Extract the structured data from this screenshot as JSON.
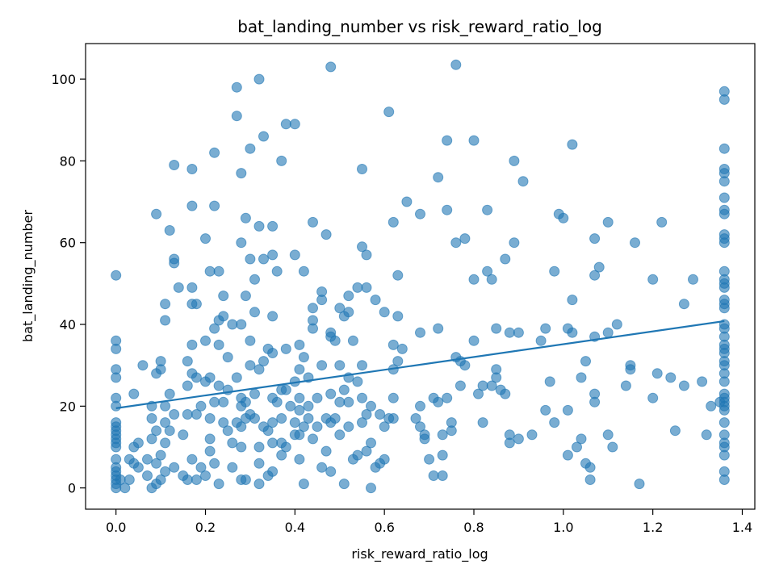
{
  "chart_data": {
    "type": "scatter",
    "title": "bat_landing_number vs risk_reward_ratio_log",
    "xlabel": "risk_reward_ratio_log",
    "ylabel": "bat_landing_number",
    "xlim": [
      -0.068,
      1.428
    ],
    "ylim": [
      -5.2,
      108.7
    ],
    "xticks": [
      0.0,
      0.2,
      0.4,
      0.6,
      0.8,
      1.0,
      1.2,
      1.4
    ],
    "xtick_labels": [
      "0.0",
      "0.2",
      "0.4",
      "0.6",
      "0.8",
      "1.0",
      "1.2",
      "1.4"
    ],
    "yticks": [
      0,
      20,
      40,
      60,
      80,
      100
    ],
    "ytick_labels": [
      "0",
      "20",
      "40",
      "60",
      "80",
      "100"
    ],
    "grid": false,
    "colors": {
      "points": "#1f77b4",
      "trend": "#1f77b4"
    },
    "trendline": {
      "x": [
        0.0,
        1.36
      ],
      "y": [
        19.5,
        40.8
      ]
    },
    "points": [
      [
        0.0,
        52
      ],
      [
        0.0,
        36
      ],
      [
        0.0,
        34
      ],
      [
        0.0,
        29
      ],
      [
        0.0,
        27
      ],
      [
        0.0,
        22
      ],
      [
        0.0,
        20
      ],
      [
        0.0,
        16
      ],
      [
        0.0,
        15
      ],
      [
        0.0,
        14
      ],
      [
        0.0,
        13
      ],
      [
        0.0,
        12
      ],
      [
        0.0,
        11
      ],
      [
        0.0,
        10
      ],
      [
        0.0,
        7
      ],
      [
        0.0,
        5
      ],
      [
        0.0,
        4
      ],
      [
        0.0,
        3
      ],
      [
        0.0,
        2
      ],
      [
        0.0,
        1
      ],
      [
        0.0,
        0
      ],
      [
        0.01,
        2
      ],
      [
        0.02,
        0
      ],
      [
        0.03,
        2
      ],
      [
        0.03,
        7
      ],
      [
        0.04,
        10
      ],
      [
        0.04,
        6
      ],
      [
        0.04,
        23
      ],
      [
        0.05,
        11
      ],
      [
        0.05,
        5
      ],
      [
        0.06,
        30
      ],
      [
        0.07,
        7
      ],
      [
        0.07,
        3
      ],
      [
        0.08,
        0
      ],
      [
        0.08,
        20
      ],
      [
        0.08,
        17
      ],
      [
        0.08,
        12
      ],
      [
        0.09,
        67
      ],
      [
        0.09,
        28
      ],
      [
        0.09,
        14
      ],
      [
        0.09,
        1
      ],
      [
        0.09,
        6
      ],
      [
        0.1,
        31
      ],
      [
        0.1,
        29
      ],
      [
        0.1,
        8
      ],
      [
        0.1,
        2
      ],
      [
        0.11,
        45
      ],
      [
        0.11,
        41
      ],
      [
        0.11,
        20
      ],
      [
        0.11,
        16
      ],
      [
        0.11,
        11
      ],
      [
        0.11,
        4
      ],
      [
        0.12,
        23
      ],
      [
        0.12,
        63
      ],
      [
        0.12,
        14
      ],
      [
        0.13,
        79
      ],
      [
        0.13,
        56
      ],
      [
        0.13,
        55
      ],
      [
        0.13,
        18
      ],
      [
        0.13,
        5
      ],
      [
        0.14,
        49
      ],
      [
        0.15,
        13
      ],
      [
        0.15,
        3
      ],
      [
        0.16,
        31
      ],
      [
        0.16,
        25
      ],
      [
        0.16,
        18
      ],
      [
        0.16,
        2
      ],
      [
        0.17,
        69
      ],
      [
        0.17,
        78
      ],
      [
        0.17,
        45
      ],
      [
        0.17,
        49
      ],
      [
        0.17,
        35
      ],
      [
        0.17,
        28
      ],
      [
        0.17,
        7
      ],
      [
        0.18,
        45
      ],
      [
        0.18,
        27
      ],
      [
        0.18,
        18
      ],
      [
        0.18,
        2
      ],
      [
        0.19,
        20
      ],
      [
        0.19,
        5
      ],
      [
        0.2,
        61
      ],
      [
        0.2,
        36
      ],
      [
        0.2,
        26
      ],
      [
        0.2,
        3
      ],
      [
        0.21,
        53
      ],
      [
        0.21,
        27
      ],
      [
        0.21,
        17
      ],
      [
        0.21,
        12
      ],
      [
        0.21,
        9
      ],
      [
        0.22,
        82
      ],
      [
        0.22,
        69
      ],
      [
        0.22,
        39
      ],
      [
        0.22,
        21
      ],
      [
        0.22,
        6
      ],
      [
        0.23,
        53
      ],
      [
        0.23,
        41
      ],
      [
        0.23,
        35
      ],
      [
        0.23,
        25
      ],
      [
        0.23,
        1
      ],
      [
        0.24,
        21
      ],
      [
        0.24,
        42
      ],
      [
        0.24,
        47
      ],
      [
        0.24,
        16
      ],
      [
        0.25,
        24
      ],
      [
        0.25,
        32
      ],
      [
        0.25,
        14
      ],
      [
        0.26,
        40
      ],
      [
        0.26,
        5
      ],
      [
        0.26,
        11
      ],
      [
        0.27,
        16
      ],
      [
        0.27,
        27
      ],
      [
        0.27,
        91
      ],
      [
        0.27,
        98
      ],
      [
        0.28,
        77
      ],
      [
        0.28,
        60
      ],
      [
        0.28,
        40
      ],
      [
        0.28,
        22
      ],
      [
        0.28,
        20
      ],
      [
        0.28,
        15
      ],
      [
        0.28,
        10
      ],
      [
        0.28,
        2
      ],
      [
        0.29,
        66
      ],
      [
        0.29,
        47
      ],
      [
        0.29,
        21
      ],
      [
        0.29,
        17
      ],
      [
        0.29,
        2
      ],
      [
        0.3,
        56
      ],
      [
        0.3,
        83
      ],
      [
        0.3,
        36
      ],
      [
        0.3,
        30
      ],
      [
        0.3,
        18
      ],
      [
        0.31,
        51
      ],
      [
        0.31,
        43
      ],
      [
        0.31,
        23
      ],
      [
        0.31,
        17
      ],
      [
        0.32,
        100
      ],
      [
        0.32,
        64
      ],
      [
        0.32,
        29
      ],
      [
        0.32,
        10
      ],
      [
        0.32,
        6
      ],
      [
        0.32,
        1
      ],
      [
        0.33,
        86
      ],
      [
        0.33,
        56
      ],
      [
        0.33,
        31
      ],
      [
        0.33,
        15
      ],
      [
        0.34,
        34
      ],
      [
        0.34,
        14
      ],
      [
        0.34,
        3
      ],
      [
        0.35,
        64
      ],
      [
        0.35,
        57
      ],
      [
        0.35,
        42
      ],
      [
        0.35,
        33
      ],
      [
        0.35,
        22
      ],
      [
        0.35,
        16
      ],
      [
        0.35,
        11
      ],
      [
        0.35,
        4
      ],
      [
        0.36,
        53
      ],
      [
        0.36,
        21
      ],
      [
        0.37,
        80
      ],
      [
        0.37,
        24
      ],
      [
        0.37,
        17
      ],
      [
        0.37,
        11
      ],
      [
        0.37,
        8
      ],
      [
        0.38,
        89
      ],
      [
        0.38,
        34
      ],
      [
        0.38,
        24
      ],
      [
        0.38,
        10
      ],
      [
        0.39,
        20
      ],
      [
        0.4,
        89
      ],
      [
        0.4,
        57
      ],
      [
        0.4,
        26
      ],
      [
        0.4,
        16
      ],
      [
        0.4,
        13
      ],
      [
        0.41,
        35
      ],
      [
        0.41,
        29
      ],
      [
        0.41,
        22
      ],
      [
        0.41,
        19
      ],
      [
        0.41,
        13
      ],
      [
        0.41,
        7
      ],
      [
        0.42,
        32
      ],
      [
        0.42,
        53
      ],
      [
        0.42,
        15
      ],
      [
        0.42,
        1
      ],
      [
        0.43,
        27
      ],
      [
        0.43,
        20
      ],
      [
        0.43,
        17
      ],
      [
        0.44,
        65
      ],
      [
        0.44,
        44
      ],
      [
        0.44,
        41
      ],
      [
        0.44,
        39
      ],
      [
        0.44,
        12
      ],
      [
        0.45,
        22
      ],
      [
        0.45,
        15
      ],
      [
        0.46,
        48
      ],
      [
        0.46,
        46
      ],
      [
        0.46,
        30
      ],
      [
        0.46,
        5
      ],
      [
        0.47,
        62
      ],
      [
        0.47,
        17
      ],
      [
        0.47,
        9
      ],
      [
        0.48,
        103
      ],
      [
        0.48,
        4
      ],
      [
        0.48,
        38
      ],
      [
        0.48,
        37
      ],
      [
        0.48,
        23
      ],
      [
        0.48,
        16
      ],
      [
        0.49,
        36
      ],
      [
        0.49,
        17
      ],
      [
        0.5,
        44
      ],
      [
        0.5,
        30
      ],
      [
        0.5,
        21
      ],
      [
        0.5,
        13
      ],
      [
        0.51,
        42
      ],
      [
        0.51,
        24
      ],
      [
        0.51,
        1
      ],
      [
        0.52,
        47
      ],
      [
        0.52,
        43
      ],
      [
        0.52,
        27
      ],
      [
        0.52,
        21
      ],
      [
        0.52,
        15
      ],
      [
        0.53,
        36
      ],
      [
        0.53,
        7
      ],
      [
        0.54,
        49
      ],
      [
        0.54,
        26
      ],
      [
        0.54,
        8
      ],
      [
        0.55,
        78
      ],
      [
        0.55,
        59
      ],
      [
        0.55,
        30
      ],
      [
        0.55,
        22
      ],
      [
        0.55,
        16
      ],
      [
        0.56,
        57
      ],
      [
        0.56,
        49
      ],
      [
        0.56,
        18
      ],
      [
        0.56,
        9
      ],
      [
        0.57,
        20
      ],
      [
        0.57,
        11
      ],
      [
        0.57,
        0
      ],
      [
        0.58,
        46
      ],
      [
        0.58,
        5
      ],
      [
        0.59,
        18
      ],
      [
        0.59,
        6
      ],
      [
        0.6,
        43
      ],
      [
        0.6,
        15
      ],
      [
        0.6,
        7
      ],
      [
        0.61,
        92
      ],
      [
        0.61,
        17
      ],
      [
        0.62,
        65
      ],
      [
        0.62,
        35
      ],
      [
        0.62,
        22
      ],
      [
        0.62,
        17
      ],
      [
        0.62,
        29
      ],
      [
        0.63,
        52
      ],
      [
        0.63,
        42
      ],
      [
        0.63,
        31
      ],
      [
        0.64,
        34
      ],
      [
        0.65,
        70
      ],
      [
        0.67,
        17
      ],
      [
        0.68,
        38
      ],
      [
        0.68,
        67
      ],
      [
        0.68,
        20
      ],
      [
        0.68,
        15
      ],
      [
        0.69,
        13
      ],
      [
        0.69,
        12
      ],
      [
        0.7,
        7
      ],
      [
        0.71,
        22
      ],
      [
        0.71,
        3
      ],
      [
        0.72,
        76
      ],
      [
        0.72,
        39
      ],
      [
        0.72,
        21
      ],
      [
        0.73,
        13
      ],
      [
        0.73,
        8
      ],
      [
        0.73,
        3
      ],
      [
        0.74,
        85
      ],
      [
        0.74,
        68
      ],
      [
        0.74,
        22
      ],
      [
        0.75,
        16
      ],
      [
        0.75,
        14
      ],
      [
        0.76,
        103.5
      ],
      [
        0.76,
        32
      ],
      [
        0.76,
        60
      ],
      [
        0.77,
        31
      ],
      [
        0.77,
        25
      ],
      [
        0.78,
        61
      ],
      [
        0.78,
        30
      ],
      [
        0.8,
        85
      ],
      [
        0.8,
        51
      ],
      [
        0.8,
        36
      ],
      [
        0.81,
        23
      ],
      [
        0.82,
        25
      ],
      [
        0.82,
        16
      ],
      [
        0.83,
        68
      ],
      [
        0.83,
        53
      ],
      [
        0.84,
        25
      ],
      [
        0.84,
        51
      ],
      [
        0.85,
        39
      ],
      [
        0.85,
        29
      ],
      [
        0.85,
        27
      ],
      [
        0.86,
        24
      ],
      [
        0.87,
        23
      ],
      [
        0.87,
        56
      ],
      [
        0.88,
        38
      ],
      [
        0.88,
        13
      ],
      [
        0.88,
        11
      ],
      [
        0.89,
        80
      ],
      [
        0.89,
        60
      ],
      [
        0.9,
        38
      ],
      [
        0.9,
        12
      ],
      [
        0.91,
        75
      ],
      [
        0.93,
        13
      ],
      [
        0.95,
        36
      ],
      [
        0.96,
        39
      ],
      [
        0.96,
        19
      ],
      [
        0.97,
        26
      ],
      [
        0.98,
        53
      ],
      [
        0.98,
        16
      ],
      [
        0.99,
        67
      ],
      [
        1.0,
        66
      ],
      [
        1.01,
        39
      ],
      [
        1.01,
        19
      ],
      [
        1.02,
        84
      ],
      [
        1.02,
        46
      ],
      [
        1.02,
        38
      ],
      [
        1.01,
        8
      ],
      [
        1.03,
        10
      ],
      [
        1.04,
        27
      ],
      [
        1.04,
        12
      ],
      [
        1.05,
        6
      ],
      [
        1.05,
        31
      ],
      [
        1.06,
        5
      ],
      [
        1.06,
        2
      ],
      [
        1.07,
        61
      ],
      [
        1.07,
        52
      ],
      [
        1.07,
        37
      ],
      [
        1.07,
        23
      ],
      [
        1.07,
        21
      ],
      [
        1.08,
        54
      ],
      [
        1.1,
        65
      ],
      [
        1.1,
        38
      ],
      [
        1.1,
        13
      ],
      [
        1.11,
        10
      ],
      [
        1.12,
        40
      ],
      [
        1.14,
        25
      ],
      [
        1.15,
        29
      ],
      [
        1.15,
        30
      ],
      [
        1.16,
        60
      ],
      [
        1.17,
        1
      ],
      [
        1.2,
        51
      ],
      [
        1.2,
        22
      ],
      [
        1.21,
        28
      ],
      [
        1.22,
        65
      ],
      [
        1.24,
        27
      ],
      [
        1.25,
        14
      ],
      [
        1.27,
        45
      ],
      [
        1.27,
        25
      ],
      [
        1.29,
        51
      ],
      [
        1.31,
        26
      ],
      [
        1.32,
        13
      ],
      [
        1.33,
        20
      ],
      [
        1.35,
        21
      ],
      [
        1.36,
        97
      ],
      [
        1.36,
        95
      ],
      [
        1.36,
        83
      ],
      [
        1.36,
        78
      ],
      [
        1.36,
        77
      ],
      [
        1.36,
        75
      ],
      [
        1.36,
        71
      ],
      [
        1.36,
        68
      ],
      [
        1.36,
        67
      ],
      [
        1.36,
        62
      ],
      [
        1.36,
        61
      ],
      [
        1.36,
        60
      ],
      [
        1.36,
        53
      ],
      [
        1.36,
        51
      ],
      [
        1.36,
        50
      ],
      [
        1.36,
        49
      ],
      [
        1.36,
        46
      ],
      [
        1.36,
        45
      ],
      [
        1.36,
        44
      ],
      [
        1.36,
        40
      ],
      [
        1.36,
        39
      ],
      [
        1.36,
        37
      ],
      [
        1.36,
        35
      ],
      [
        1.36,
        34
      ],
      [
        1.36,
        33
      ],
      [
        1.36,
        31
      ],
      [
        1.36,
        30
      ],
      [
        1.36,
        28
      ],
      [
        1.36,
        26
      ],
      [
        1.36,
        23
      ],
      [
        1.36,
        22
      ],
      [
        1.36,
        21
      ],
      [
        1.36,
        20
      ],
      [
        1.36,
        19
      ],
      [
        1.36,
        16
      ],
      [
        1.36,
        13
      ],
      [
        1.36,
        11
      ],
      [
        1.36,
        10
      ],
      [
        1.36,
        8
      ],
      [
        1.36,
        4
      ],
      [
        1.36,
        2
      ]
    ]
  }
}
